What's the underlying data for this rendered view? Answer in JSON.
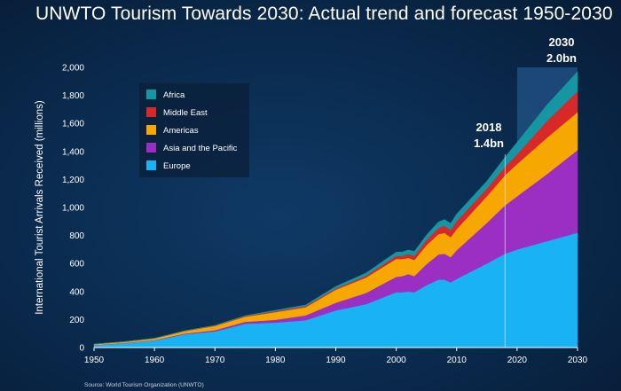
{
  "title": "UNWTO Tourism Towards 2030: Actual trend and forecast 1950-2030",
  "source": "Source: World Tourism Organization (UNWTO)",
  "colors": {
    "Africa": "#1597a3",
    "Middle East": "#d7282a",
    "Americas": "#f6a800",
    "Asia and the Pacific": "#9b2fc4",
    "Europe": "#19b3f3",
    "forecast_band": "#1f4f80"
  },
  "chart_data": {
    "type": "area",
    "stacked": true,
    "title": "UNWTO Tourism Towards 2030: Actual trend and forecast 1950-2030",
    "ylabel": "International Tourist Arrivals Received (millions)",
    "xlabel": "",
    "xlim": [
      1950,
      2030
    ],
    "ylim": [
      0,
      2000
    ],
    "xticks": [
      1950,
      1960,
      1970,
      1980,
      1990,
      2000,
      2010,
      2020,
      2030
    ],
    "yticks": [
      "0",
      "200",
      "400",
      "600",
      "800",
      "1,000",
      "1,200",
      "1,400",
      "1,600",
      "1,800",
      "2,000"
    ],
    "ytick_values": [
      0,
      200,
      400,
      600,
      800,
      1000,
      1200,
      1400,
      1600,
      1800,
      2000
    ],
    "legend_position": "top-left",
    "forecast_region": [
      2020,
      2030
    ],
    "x": [
      1950,
      1955,
      1960,
      1965,
      1970,
      1975,
      1980,
      1985,
      1990,
      1995,
      2000,
      2001,
      2002,
      2003,
      2005,
      2007,
      2008,
      2009,
      2010,
      2015,
      2018,
      2020,
      2025,
      2030
    ],
    "series": [
      {
        "name": "Europe",
        "values": [
          17,
          31,
          50,
          95,
          115,
          170,
          178,
          195,
          265,
          310,
          395,
          395,
          400,
          395,
          445,
          485,
          485,
          465,
          490,
          600,
          670,
          700,
          760,
          820
        ]
      },
      {
        "name": "Asia and the Pacific",
        "values": [
          1,
          2,
          3,
          5,
          9,
          14,
          20,
          35,
          55,
          80,
          110,
          115,
          125,
          115,
          150,
          180,
          185,
          180,
          205,
          290,
          345,
          380,
          480,
          590
        ]
      },
      {
        "name": "Americas",
        "values": [
          6,
          8,
          12,
          17,
          30,
          36,
          55,
          58,
          93,
          110,
          128,
          122,
          115,
          115,
          135,
          145,
          148,
          142,
          150,
          190,
          215,
          230,
          260,
          270
        ]
      },
      {
        "name": "Middle East",
        "values": [
          0.5,
          0.8,
          1,
          2,
          3,
          5,
          7,
          8,
          9,
          13,
          22,
          22,
          28,
          30,
          38,
          45,
          52,
          53,
          58,
          55,
          61,
          70,
          120,
          150
        ]
      },
      {
        "name": "Africa",
        "values": [
          0.5,
          0.7,
          0.8,
          1.3,
          1.5,
          2.5,
          6,
          8,
          14,
          19,
          26,
          28,
          29,
          31,
          35,
          42,
          44,
          46,
          50,
          53,
          67,
          85,
          115,
          140
        ]
      }
    ],
    "annotations": [
      {
        "year_label": "2018",
        "value_label": "1.4bn",
        "x": 2018
      },
      {
        "year_label": "2030",
        "value_label": "2.0bn",
        "x": 2030
      }
    ]
  }
}
